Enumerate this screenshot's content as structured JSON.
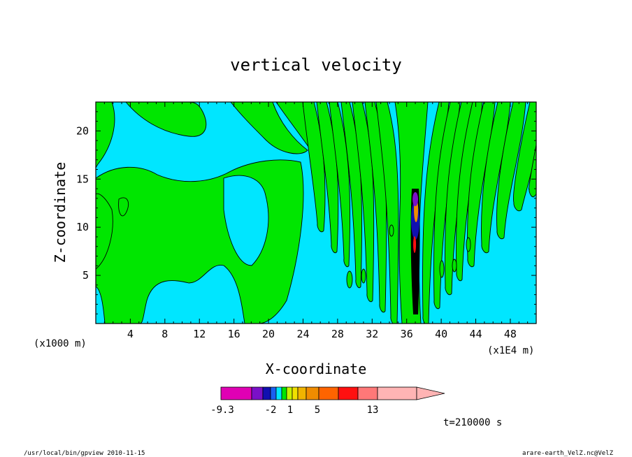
{
  "chart_data": {
    "type": "heatmap",
    "title": "vertical velocity",
    "xlabel": "X-coordinate",
    "ylabel": "Z-coordinate",
    "x_scale_label": "(x1000 m)",
    "x_unit_label": "(x1E4 m)",
    "xlim": [
      0,
      51
    ],
    "ylim": [
      0,
      23
    ],
    "x_ticks": [
      4,
      8,
      12,
      16,
      20,
      24,
      28,
      32,
      36,
      40,
      44,
      48
    ],
    "y_ticks": [
      5,
      10,
      15,
      20
    ],
    "time_label": "t=210000 s",
    "colorbar": {
      "levels": [
        -9.3,
        -2,
        1,
        5,
        13
      ],
      "labels": [
        "-9.3",
        "-2",
        "1",
        "5",
        "13"
      ],
      "colors": [
        "#e000b4",
        "#7a10c8",
        "#1010b0",
        "#1a60f0",
        "#00e6ff",
        "#00e600",
        "#c8f000",
        "#f0e000",
        "#f0b400",
        "#f08c00",
        "#ff6400",
        "#ff1010",
        "#ff7878",
        "#ffb4b4"
      ]
    },
    "field_colors": {
      "positive": "#00e600",
      "negative": "#00e6ff",
      "contour": "#000000"
    }
  },
  "footer": {
    "left": "/usr/local/bin/gpview   2010-11-15",
    "right": "arare-earth_VelZ.nc@VelZ"
  }
}
